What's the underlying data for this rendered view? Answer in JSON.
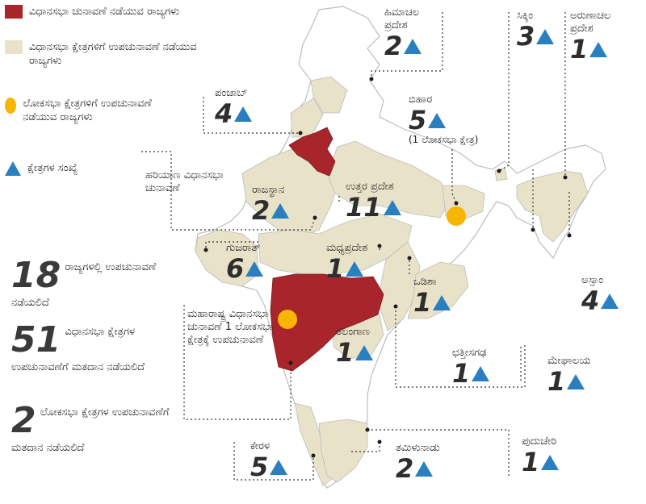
{
  "legend": {
    "assembly_states": "ವಿಧಾನಸಭಾ ಚುನಾವಣೆ ನಡೆಯುವ ರಾಜ್ಯಗಳು",
    "bypoll_states": "ವಿಧಾನಸಭಾ ಕ್ಷೇತ್ರಗಳಿಗೆ ಉಪಚುನಾವಣೆ ನಡೆಯುವ ರಾಜ್ಯಗಳು",
    "ls_bypoll_states": "ಲೋಕಸಭಾ ಕ್ಷೇತ್ರಗಳಿಗೆ ಉಪಚುನಾವಣೆ ನಡೆಯುವ ರಾಜ್ಯಗಳು",
    "constituency_count": "ಕ್ಷೇತ್ರಗಳ ಸಂಖ್ಯೆ",
    "colors": {
      "assembly": "#a8262b",
      "bypoll": "#e8e2c8",
      "lok_sabha": "#f7b500",
      "triangle": "#2a7fc1"
    }
  },
  "states": [
    {
      "key": "himachal",
      "name": "ಹಿಮಾಚಲ ಪ್ರದೇಶ",
      "count": "2"
    },
    {
      "key": "sikkim",
      "name": "ಸಿಕ್ಕಿಂ",
      "count": "3"
    },
    {
      "key": "arunachal",
      "name": "ಅರುಣಾಚಲ ಪ್ರದೇಶ",
      "count": "1"
    },
    {
      "key": "punjab",
      "name": "ಪಂಜಾಬ್",
      "count": "4"
    },
    {
      "key": "bihar",
      "name": "ಬಿಹಾರ",
      "count": "5",
      "note": "(1 ಲೋಕಸಭಾ ಕ್ಷೇತ್ರ)"
    },
    {
      "key": "rajasthan",
      "name": "ರಾಜಸ್ಥಾನ",
      "count": "2"
    },
    {
      "key": "up",
      "name": "ಉತ್ತರ ಪ್ರದೇಶ",
      "count": "11"
    },
    {
      "key": "gujarat",
      "name": "ಗುಜರಾತ್",
      "count": "6"
    },
    {
      "key": "mp",
      "name": "ಮಧ್ಯಪ್ರದೇಶ",
      "count": "1"
    },
    {
      "key": "odisha",
      "name": "ಒಡಿಶಾ",
      "count": "1"
    },
    {
      "key": "assam",
      "name": "ಅಸ್ಸಾಂ",
      "count": "4"
    },
    {
      "key": "telangana",
      "name": "ತೆಲಂಗಾಣ",
      "count": "1"
    },
    {
      "key": "chhattisgarh",
      "name": "ಛತ್ತೀಸಗಢ",
      "count": "1"
    },
    {
      "key": "meghalaya",
      "name": "ಮೇಘಾಲಯ",
      "count": "1"
    },
    {
      "key": "kerala",
      "name": "ಕೇರಳ",
      "count": "5"
    },
    {
      "key": "tamilnadu",
      "name": "ತಮಿಳುನಾಡು",
      "count": "2"
    },
    {
      "key": "puducherry",
      "name": "ಪುದುಚೇರಿ",
      "count": "1"
    }
  ],
  "notes": {
    "haryana": "ಹರಿಯಾಣ ವಿಧಾನಸಭಾ ಚುನಾವಣೆ",
    "maharashtra": "ಮಹಾರಾಷ್ಟ್ರ ವಿಧಾನಸಭಾ ಚುನಾವಣೆ 1 ಲೋಕಸಭಾ ಕ್ಷೇತ್ರಕ್ಕೆ ಉಪಚುನಾವಣೆ"
  },
  "stats": [
    {
      "number": "18",
      "text": "ರಾಜ್ಯಗಳಲ್ಲಿ ಉಪಚುನಾವಣೆ ನಡೆಯಲಿದೆ"
    },
    {
      "number": "51",
      "text": "ವಿಧಾನಸಭಾ ಕ್ಷೇತ್ರಗಳ ಉಪಚುನಾವಣೆಗೆ ಮತದಾನ ನಡೆಯಲಿದೆ"
    },
    {
      "number": "2",
      "text": "ಲೋಕಸಭಾ ಕ್ಷೇತ್ರಗಳ ಉಪಚುನಾವಣೆಗೆ ಮತದಾನ ನಡೆಯಲಿದೆ"
    }
  ]
}
